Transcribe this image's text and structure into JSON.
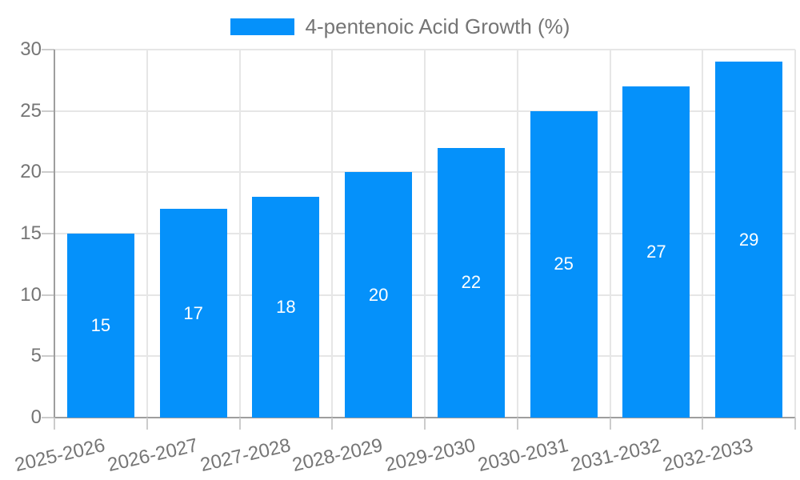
{
  "legend": {
    "label": "4-pentenoic Acid Growth (%)"
  },
  "colors": {
    "bar": "#0591fa",
    "grid": "#e6e6e6",
    "axis_line": "#9e9e9e",
    "tick": "#cccccc",
    "axis_text": "#757575",
    "legend_text": "#757575",
    "bar_label": "#ffffff",
    "background": "#ffffff"
  },
  "chart_data": {
    "type": "bar",
    "title": "4-pentenoic Acid Growth (%)",
    "categories": [
      "2025-2026",
      "2026-2027",
      "2027-2028",
      "2028-2029",
      "2029-2030",
      "2030-2031",
      "2031-2032",
      "2032-2033"
    ],
    "values": [
      15,
      17,
      18,
      20,
      22,
      25,
      27,
      29
    ],
    "xlabel": "",
    "ylabel": "",
    "ylim": [
      0,
      30
    ],
    "ytick_step": 5,
    "yticks": [
      "0",
      "5",
      "10",
      "15",
      "20",
      "25",
      "30"
    ],
    "grid": true,
    "value_labels_inside_bars": true,
    "legend_position": "top-center",
    "x_label_rotation_deg": -13
  }
}
